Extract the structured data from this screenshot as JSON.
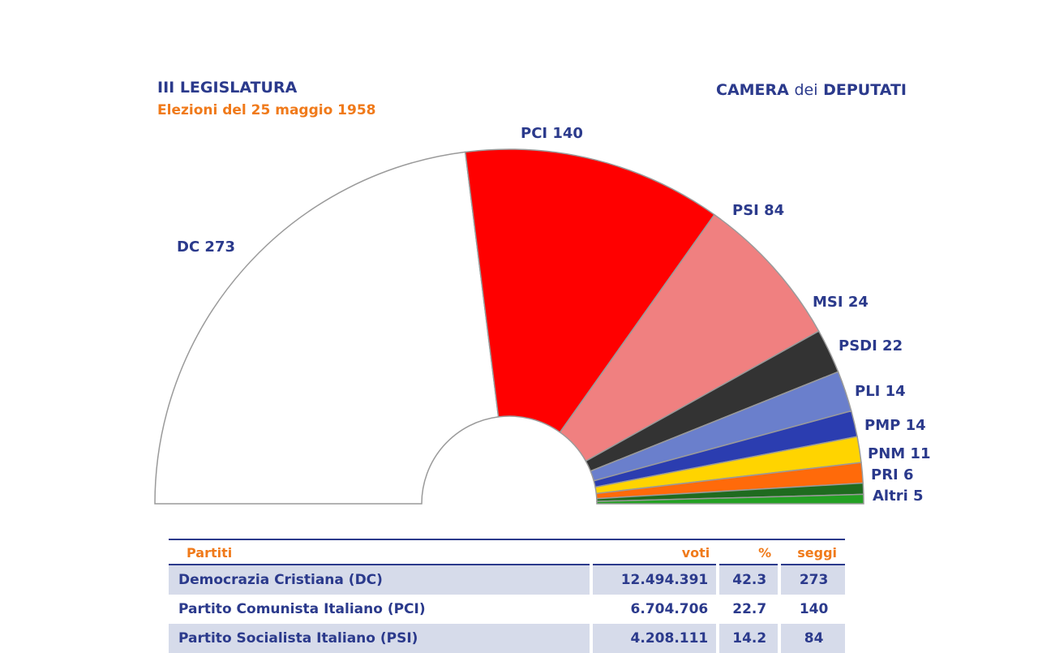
{
  "header": {
    "legislatura": "III LEGISLATURA",
    "elezioni": "Elezioni del 25 maggio 1958",
    "camera_prefix": "CAMERA ",
    "camera_dei": "dei",
    "camera_suffix": " DEPUTATI"
  },
  "chart_data": {
    "type": "pie",
    "subtype": "parliament-hemicycle",
    "title": "III LEGISLATURA",
    "subtitle": "Elezioni del 25 maggio 1958",
    "series": [
      {
        "name": "DC",
        "value": 273,
        "color": "#ffffff",
        "label": "DC 273"
      },
      {
        "name": "PCI",
        "value": 140,
        "color": "#ff0000",
        "label": "PCI 140"
      },
      {
        "name": "PSI",
        "value": 84,
        "color": "#f08080",
        "label": "PSI 84"
      },
      {
        "name": "MSI",
        "value": 24,
        "color": "#333333",
        "label": "MSI 24"
      },
      {
        "name": "PSDI",
        "value": 22,
        "color": "#6a7fcc",
        "label": "PSDI 22"
      },
      {
        "name": "PLI",
        "value": 14,
        "color": "#2b3db0",
        "label": "PLI 14"
      },
      {
        "name": "PMP",
        "value": 14,
        "color": "#ffd400",
        "label": "PMP 14"
      },
      {
        "name": "PNM",
        "value": 11,
        "color": "#ff6a0a",
        "label": "PNM 11"
      },
      {
        "name": "PRI",
        "value": 6,
        "color": "#1f6b1f",
        "label": "PRI 6"
      },
      {
        "name": "Altri",
        "value": 5,
        "color": "#23a023",
        "label": "Altri 5"
      }
    ]
  },
  "table": {
    "headers": {
      "party": "Partiti",
      "voti": "voti",
      "pct": "%",
      "seggi": "seggi"
    },
    "rows": [
      {
        "party": "Democrazia Cristiana (DC)",
        "voti": "12.494.391",
        "pct": "42.3",
        "seggi": "273"
      },
      {
        "party": "Partito Comunista Italiano (PCI)",
        "voti": "6.704.706",
        "pct": "22.7",
        "seggi": "140"
      },
      {
        "party": "Partito Socialista Italiano (PSI)",
        "voti": "4.208.111",
        "pct": "14.2",
        "seggi": "84"
      }
    ]
  }
}
